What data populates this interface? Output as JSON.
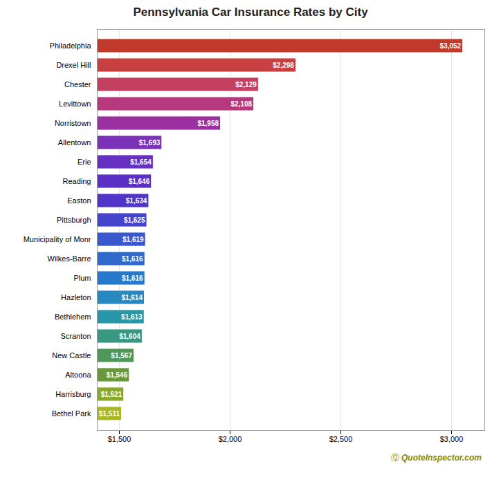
{
  "chart_data": {
    "type": "bar",
    "orientation": "horizontal",
    "title": "Pennsylvania Car Insurance Rates by City",
    "categories": [
      "Philadelphia",
      "Drexel Hill",
      "Chester",
      "Levittown",
      "Norristown",
      "Allentown",
      "Erie",
      "Reading",
      "Easton",
      "Pittsburgh",
      "Municipality of Monr",
      "Wilkes-Barre",
      "Plum",
      "Hazleton",
      "Bethlehem",
      "Scranton",
      "New Castle",
      "Altoona",
      "Harrisburg",
      "Bethel Park"
    ],
    "values": [
      3052,
      2298,
      2129,
      2108,
      1958,
      1693,
      1654,
      1646,
      1634,
      1625,
      1619,
      1616,
      1616,
      1614,
      1613,
      1604,
      1567,
      1546,
      1521,
      1511
    ],
    "value_labels": [
      "$3,052",
      "$2,298",
      "$2,129",
      "$2,108",
      "$1,958",
      "$1,693",
      "$1,654",
      "$1,646",
      "$1,634",
      "$1,625",
      "$1,619",
      "$1,616",
      "$1,616",
      "$1,614",
      "$1,613",
      "$1,604",
      "$1,567",
      "$1,546",
      "$1,521",
      "$1,511"
    ],
    "data_labels": true,
    "colors": [
      "#c0392b",
      "#c94040",
      "#c44060",
      "#b83880",
      "#9b30a0",
      "#7b32b8",
      "#6830c0",
      "#5c30c4",
      "#5035c8",
      "#4445cc",
      "#3858cc",
      "#3068cc",
      "#2878cc",
      "#2888c0",
      "#2898a8",
      "#389880",
      "#509858",
      "#689838",
      "#88a828",
      "#a8b820"
    ],
    "xlim": [
      1400,
      3150
    ],
    "xticks": [
      {
        "value": 1500,
        "label": "$1,500"
      },
      {
        "value": 2000,
        "label": "$2,000"
      },
      {
        "value": 2500,
        "label": "$2,500"
      },
      {
        "value": 3000,
        "label": "$3,000"
      }
    ],
    "grid": true,
    "annotations": [
      "Ⓠ",
      "QuoteInspector.com"
    ]
  }
}
